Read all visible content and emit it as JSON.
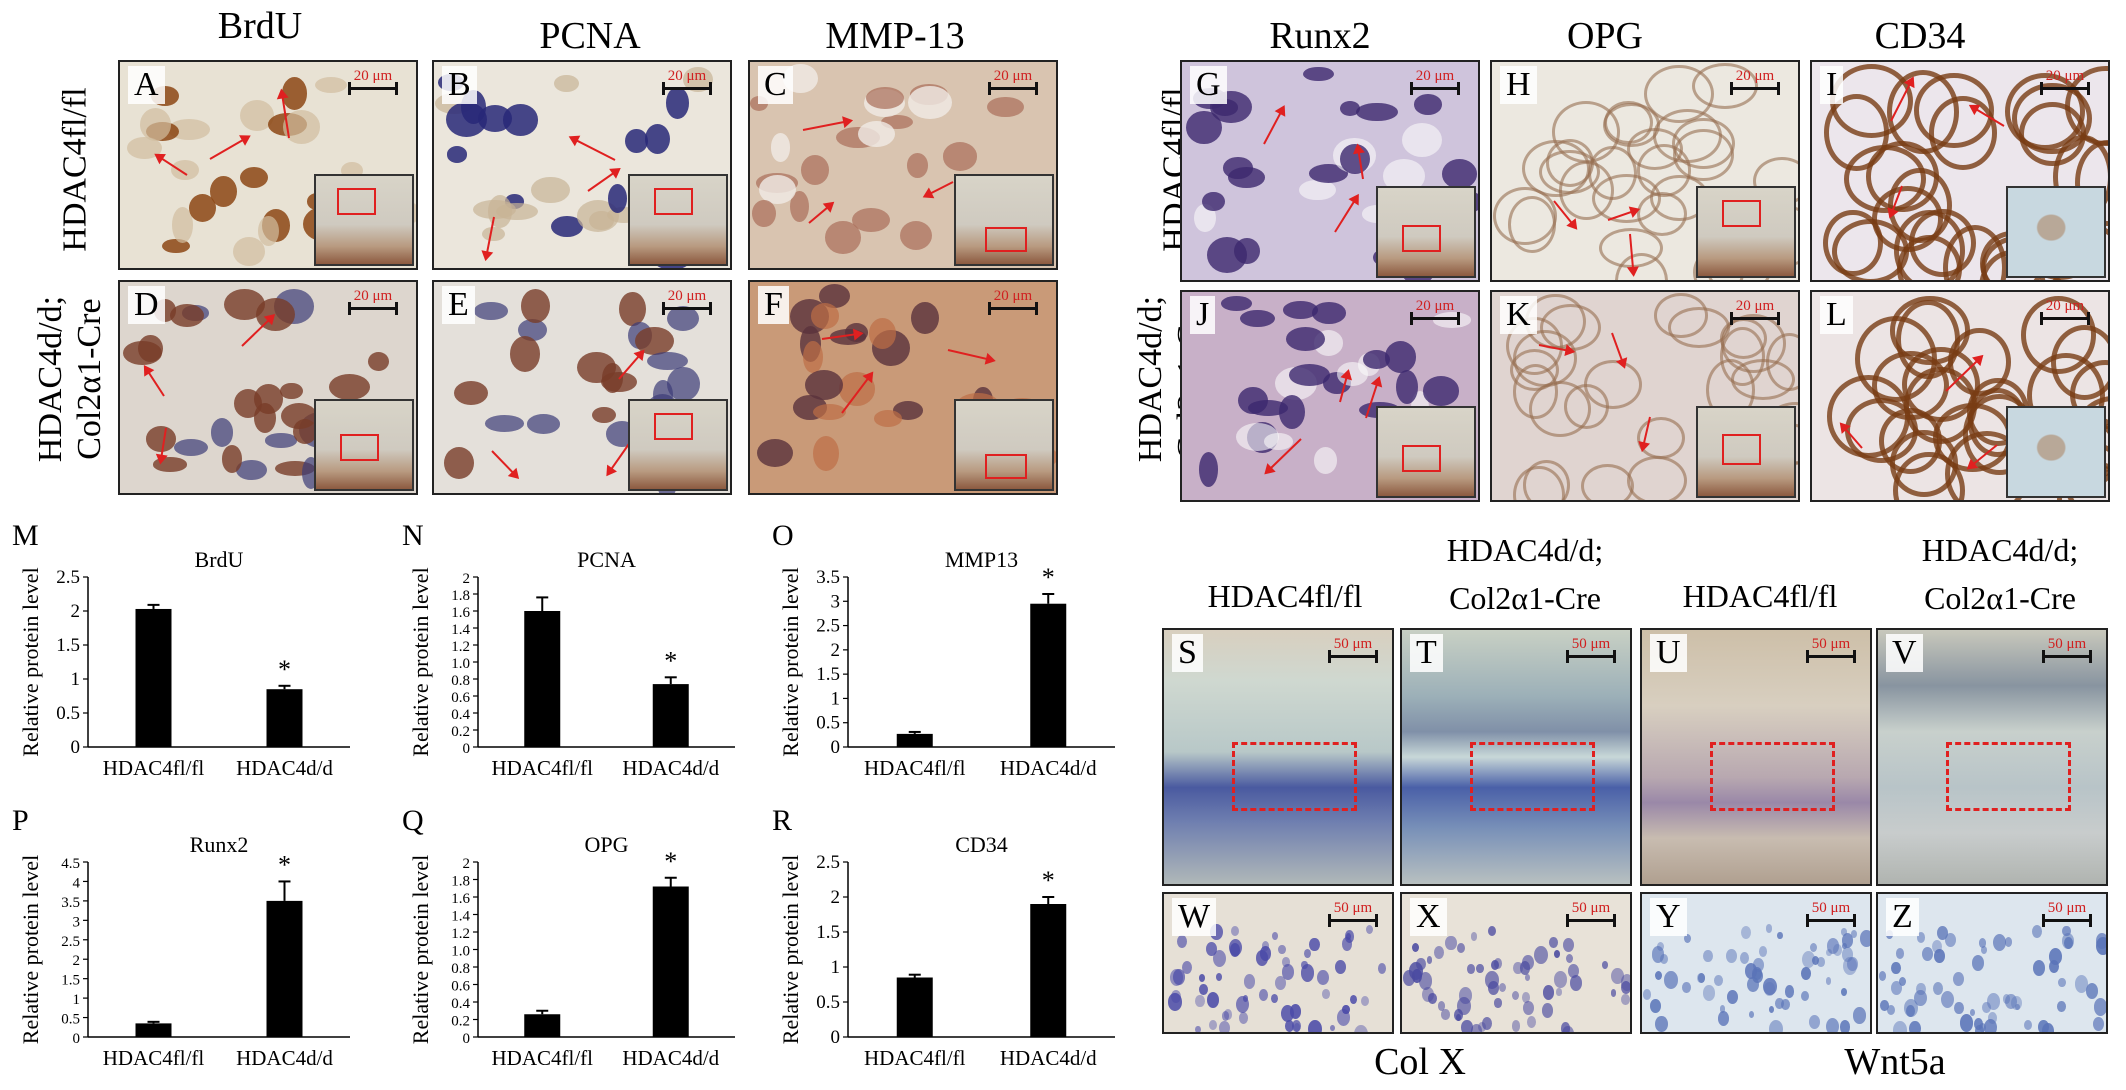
{
  "top_titles": [
    "BrdU",
    "PCNA",
    "MMP-13",
    "Runx2",
    "OPG",
    "CD34"
  ],
  "row_labels": {
    "left_top": "HDAC4fl/fl",
    "left_bottom_1": "HDAC4d/d;",
    "left_bottom_2": "Col2α1-Cre",
    "right_top": "HDAC4fl/fl",
    "right_bottom_1": "HDAC4d/d;",
    "right_bottom_2": "Col2α1-Cre"
  },
  "panel_letters": [
    "A",
    "B",
    "C",
    "D",
    "E",
    "F",
    "G",
    "H",
    "I",
    "J",
    "K",
    "L",
    "S",
    "T",
    "U",
    "V",
    "W",
    "X",
    "Y",
    "Z"
  ],
  "scale_20": "20 μm",
  "scale_50": "50 μm",
  "sz_labels": {
    "s_top": "HDAC4fl/fl",
    "t_top_1": "HDAC4d/d;",
    "t_top_2": "Col2α1-Cre",
    "u_top": "HDAC4fl/fl",
    "v_top_1": "HDAC4d/d;",
    "v_top_2": "Col2α1-Cre"
  },
  "bottom_labels": [
    "Col X",
    "Wnt5a"
  ],
  "colors": {
    "stain_brown": "#8a4a1a",
    "hematox": "#3a3a8a",
    "arrow": "#e02020",
    "bar": "#000000"
  },
  "chart_data": [
    {
      "letter": "M",
      "type": "bar",
      "title": "BrdU",
      "ylabel": "Relative protein level",
      "categories": [
        "HDAC4fl/fl",
        "HDAC4d/d"
      ],
      "values": [
        2.03,
        0.85
      ],
      "errors": [
        0.06,
        0.05
      ],
      "ylim": [
        0,
        2.5
      ],
      "ticks": [
        "0",
        "0.5",
        "1",
        "1.5",
        "2",
        "2.5"
      ],
      "tick_vals": [
        0,
        0.5,
        1,
        1.5,
        2,
        2.5
      ],
      "significance": [
        "",
        "*"
      ]
    },
    {
      "letter": "N",
      "type": "bar",
      "title": "PCNA",
      "ylabel": "Relative protein level",
      "categories": [
        "HDAC4fl/fl",
        "HDAC4d/d"
      ],
      "values": [
        1.6,
        0.74
      ],
      "errors": [
        0.16,
        0.08
      ],
      "ylim": [
        0,
        2
      ],
      "ticks": [
        "0",
        "0.2",
        "0.4",
        "0.6",
        "0.8",
        "1.0",
        "1.2",
        "1.4",
        "1.6",
        "1.8",
        "2"
      ],
      "tick_vals": [
        0,
        0.2,
        0.4,
        0.6,
        0.8,
        1.0,
        1.2,
        1.4,
        1.6,
        1.8,
        2
      ],
      "significance": [
        "",
        "*"
      ]
    },
    {
      "letter": "O",
      "type": "bar",
      "title": "MMP13",
      "ylabel": "Relative protein level",
      "categories": [
        "HDAC4fl/fl",
        "HDAC4d/d"
      ],
      "values": [
        0.27,
        2.95
      ],
      "errors": [
        0.04,
        0.2
      ],
      "ylim": [
        0,
        3.5
      ],
      "ticks": [
        "0",
        "0.5",
        "1",
        "1.5",
        "2",
        "2.5",
        "3",
        "3.5"
      ],
      "tick_vals": [
        0,
        0.5,
        1,
        1.5,
        2,
        2.5,
        3,
        3.5
      ],
      "significance": [
        "",
        "*"
      ]
    },
    {
      "letter": "P",
      "type": "bar",
      "title": "Runx2",
      "ylabel": "Relative protein level",
      "categories": [
        "HDAC4fl/fl",
        "HDAC4d/d"
      ],
      "values": [
        0.35,
        3.5
      ],
      "errors": [
        0.04,
        0.5
      ],
      "ylim": [
        0,
        4.5
      ],
      "ticks": [
        "0",
        "0.5",
        "1",
        "1.5",
        "2",
        "2.5",
        "3",
        "3.5",
        "4",
        "4.5"
      ],
      "tick_vals": [
        0,
        0.5,
        1,
        1.5,
        2,
        2.5,
        3,
        3.5,
        4,
        4.5
      ],
      "significance": [
        "",
        "*"
      ]
    },
    {
      "letter": "Q",
      "type": "bar",
      "title": "OPG",
      "ylabel": "Relative protein level",
      "categories": [
        "HDAC4fl/fl",
        "HDAC4d/d"
      ],
      "values": [
        0.26,
        1.72
      ],
      "errors": [
        0.04,
        0.1
      ],
      "ylim": [
        0,
        2
      ],
      "ticks": [
        "0",
        "0.2",
        "0.4",
        "0.6",
        "0.8",
        "1.0",
        "1.2",
        "1.4",
        "1.6",
        "1.8",
        "2"
      ],
      "tick_vals": [
        0,
        0.2,
        0.4,
        0.6,
        0.8,
        1.0,
        1.2,
        1.4,
        1.6,
        1.8,
        2
      ],
      "significance": [
        "",
        "*"
      ]
    },
    {
      "letter": "R",
      "type": "bar",
      "title": "CD34",
      "ylabel": "Relative protein level",
      "categories": [
        "HDAC4fl/fl",
        "HDAC4d/d"
      ],
      "values": [
        0.85,
        1.9
      ],
      "errors": [
        0.04,
        0.1
      ],
      "ylim": [
        0,
        2.5
      ],
      "ticks": [
        "0",
        "0.5",
        "1",
        "1.5",
        "2",
        "2.5"
      ],
      "tick_vals": [
        0,
        0.5,
        1,
        1.5,
        2,
        2.5
      ],
      "significance": [
        "",
        "*"
      ]
    }
  ]
}
